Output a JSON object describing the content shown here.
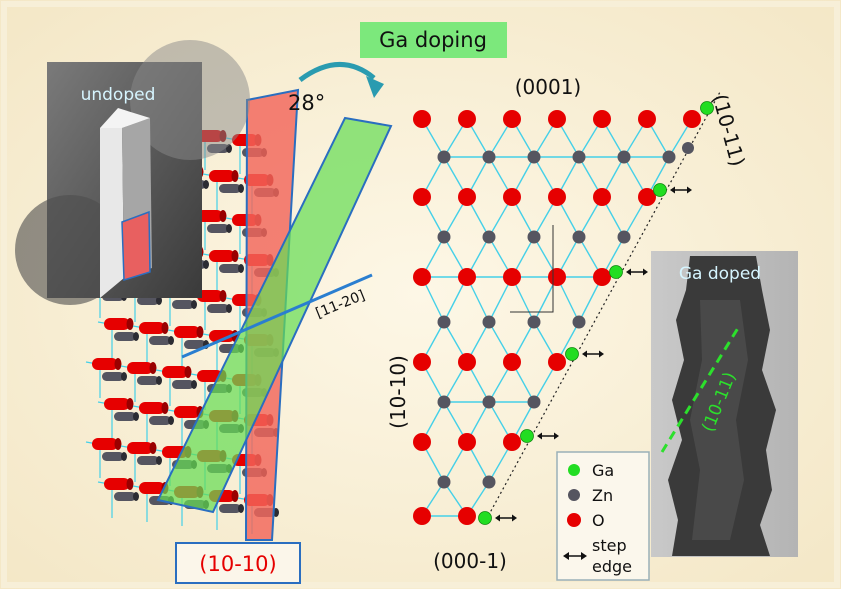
{
  "title": "Ga doping",
  "angle_label": "28°",
  "direction_label": "[11-20]",
  "plane_main_label": "(10-10)",
  "planes": {
    "top": "(0001)",
    "bottom": "(000-1)",
    "left": "(10-10)",
    "right": "(10-11)"
  },
  "inset_undoped": {
    "label": "undoped"
  },
  "inset_doped": {
    "label": "Ga doped",
    "facet_label": "(10-11)"
  },
  "legend": {
    "items": [
      {
        "label": "Ga",
        "color": "#22dd22",
        "icon": "green-dot-icon"
      },
      {
        "label": "Zn",
        "color": "#555560",
        "icon": "gray-dot-icon"
      },
      {
        "label": "O",
        "color": "#e60000",
        "icon": "red-dot-icon"
      }
    ],
    "step_line1": "step",
    "step_line2": "edge"
  },
  "colors": {
    "bond": "#44d0e8",
    "ga": "#22dd22",
    "zn": "#555560",
    "o": "#e60000",
    "title_bg": "#7ce87c",
    "plane_red": "#f2655a",
    "plane_green": "#66dd55",
    "plane_border": "#2a6ec0",
    "arrow": "#2a9bb0"
  }
}
